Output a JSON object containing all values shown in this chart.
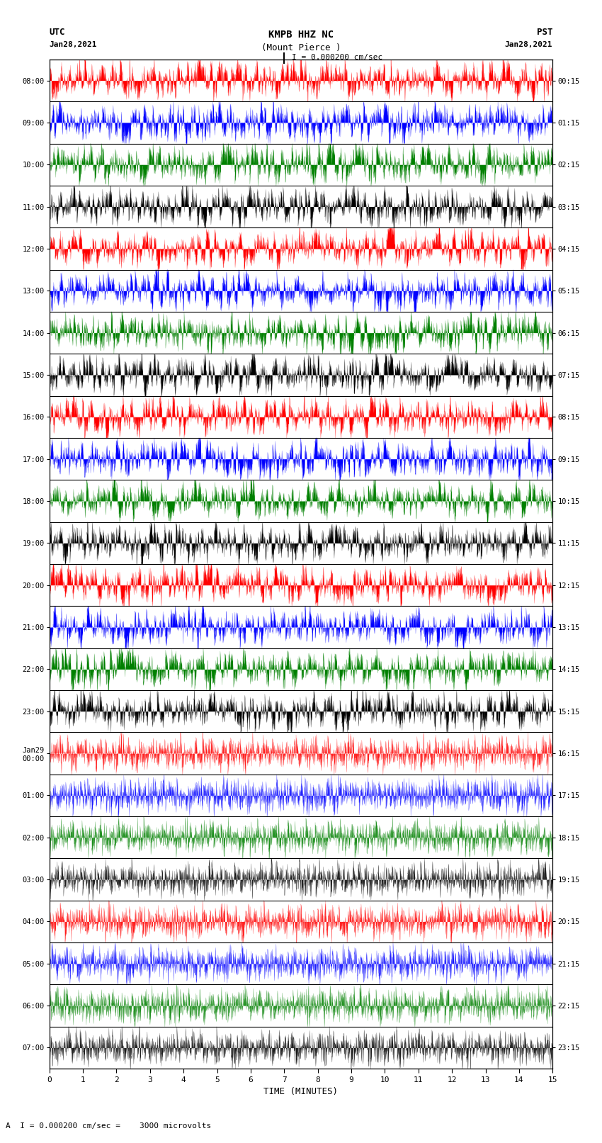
{
  "title_line1": "KMPB HHZ NC",
  "title_line2": "(Mount Pierce )",
  "scale_label": "I = 0.000200 cm/sec",
  "left_label": "UTC",
  "left_date": "Jan28,2021",
  "right_label": "PST",
  "right_date": "Jan28,2021",
  "bottom_label": "TIME (MINUTES)",
  "bottom_note": "A  I = 0.000200 cm/sec =    3000 microvolts",
  "utc_times": [
    "08:00",
    "09:00",
    "10:00",
    "11:00",
    "12:00",
    "13:00",
    "14:00",
    "15:00",
    "16:00",
    "17:00",
    "18:00",
    "19:00",
    "20:00",
    "21:00",
    "22:00",
    "23:00",
    "Jan29\n00:00",
    "01:00",
    "02:00",
    "03:00",
    "04:00",
    "05:00",
    "06:00",
    "07:00"
  ],
  "pst_times": [
    "00:15",
    "01:15",
    "02:15",
    "03:15",
    "04:15",
    "05:15",
    "06:15",
    "07:15",
    "08:15",
    "09:15",
    "10:15",
    "11:15",
    "12:15",
    "13:15",
    "14:15",
    "15:15",
    "16:15",
    "17:15",
    "18:15",
    "19:15",
    "20:15",
    "21:15",
    "22:15",
    "23:15"
  ],
  "num_rows": 24,
  "minutes_per_row": 15,
  "high_amp_rows": 16,
  "row_colors": [
    "red",
    "blue",
    "green",
    "black",
    "red",
    "blue",
    "green",
    "black",
    "red",
    "blue",
    "green",
    "black",
    "red",
    "blue",
    "green",
    "black",
    "red",
    "blue",
    "green",
    "black",
    "red",
    "blue",
    "green",
    "black"
  ],
  "seed": 42
}
